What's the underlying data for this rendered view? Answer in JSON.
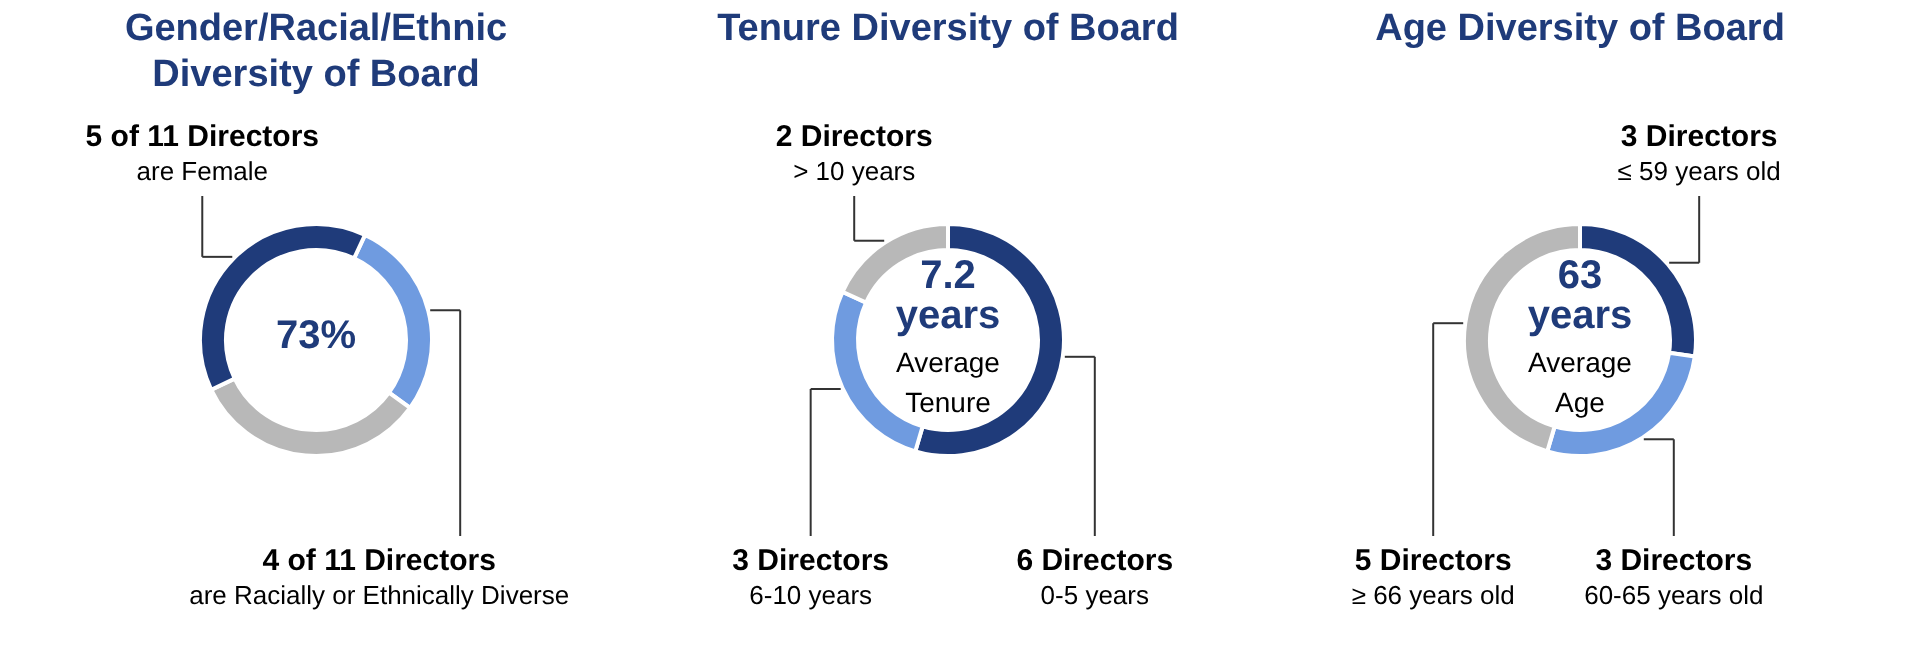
{
  "chart_data": [
    {
      "type": "donut",
      "title": "Gender/Racial/Ethnic\nDiversity of Board",
      "categories": [
        "4 of 11 Directors\nare Racially or Ethnically Diverse",
        null,
        "5 of 11 Directors\nare Female"
      ],
      "values": [
        28,
        33,
        39
      ],
      "colors": [
        "#6f9be0",
        "#b8b8b8",
        "#1f3b7a"
      ],
      "annotations": [
        "73%"
      ]
    },
    {
      "type": "donut",
      "title": "Tenure Diversity of Board",
      "categories": [
        "6 Directors\n0-5 years",
        "3 Directors\n6-10 years",
        "2 Directors\n> 10 years"
      ],
      "values": [
        6,
        3,
        2
      ],
      "colors": [
        "#1f3b7a",
        "#6f9be0",
        "#b8b8b8"
      ],
      "annotations": [
        "7.2\nyears",
        "Average\nTenure"
      ]
    },
    {
      "type": "donut",
      "title": "Age Diversity of Board",
      "categories": [
        "3 Directors\n≤ 59 years old",
        "3 Directors\n60-65 years old",
        "5 Directors\n≥ 66 years old"
      ],
      "values": [
        3,
        3,
        5
      ],
      "colors": [
        "#1f3b7a",
        "#6f9be0",
        "#b8b8b8"
      ],
      "annotations": [
        "63\nyears",
        "Average\nAge"
      ]
    }
  ]
}
